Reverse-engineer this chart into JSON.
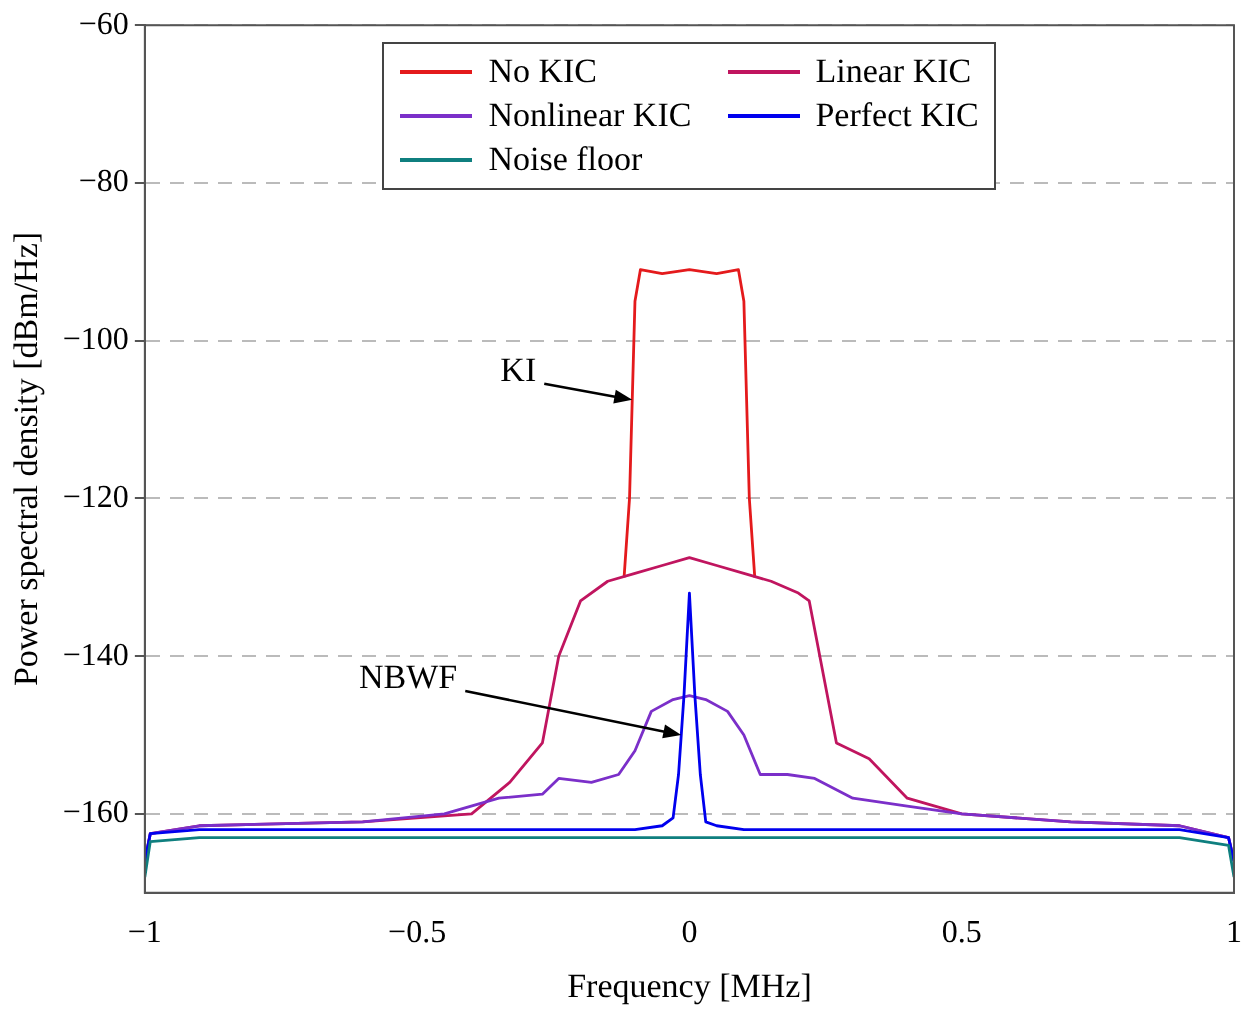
{
  "chart_data": {
    "type": "line",
    "xlabel": "Frequency [MHz]",
    "ylabel": "Power spectral density [dBm/Hz]",
    "xlim": [
      -1,
      1
    ],
    "xticks": [
      -1,
      -0.5,
      0,
      0.5,
      1
    ],
    "ylim": [
      -170,
      -60
    ],
    "yticks": [
      -160,
      -140,
      -120,
      -100,
      -80,
      -60
    ],
    "grid": "y",
    "legend": "top",
    "marker": "none",
    "line_style": "solid",
    "annotations": [
      {
        "text": "KI",
        "x": -0.105,
        "y": -107.5
      },
      {
        "text": "NBWF",
        "x": -0.015,
        "y": -150
      }
    ],
    "series": [
      {
        "name": "No KIC",
        "color": "#e41a1c",
        "x": [
          -0.12,
          -0.11,
          -0.1,
          -0.09,
          -0.05,
          0,
          0.05,
          0.09,
          0.1,
          0.11,
          0.12
        ],
        "values": [
          -130,
          -120,
          -95,
          -91,
          -91.5,
          -91,
          -91.5,
          -91,
          -95,
          -120,
          -130
        ]
      },
      {
        "name": "Linear KIC",
        "color": "#c0155f",
        "x": [
          -1,
          -0.99,
          -0.9,
          -0.6,
          -0.4,
          -0.33,
          -0.27,
          -0.24,
          -0.2,
          -0.15,
          -0.1,
          -0.05,
          0,
          0.05,
          0.1,
          0.15,
          0.2,
          0.22,
          0.27,
          0.33,
          0.4,
          0.5,
          0.7,
          0.9,
          0.99,
          1
        ],
        "values": [
          -166,
          -162.5,
          -161.5,
          -161,
          -160,
          -156,
          -151,
          -140,
          -133,
          -130.5,
          -129.5,
          -128.5,
          -127.5,
          -128.5,
          -129.5,
          -130.5,
          -132,
          -133,
          -151,
          -153,
          -158,
          -160,
          -161,
          -161.5,
          -163,
          -166
        ]
      },
      {
        "name": "Nonlinear KIC",
        "color": "#7b2fc9",
        "x": [
          -1,
          -0.99,
          -0.9,
          -0.6,
          -0.45,
          -0.35,
          -0.27,
          -0.24,
          -0.18,
          -0.13,
          -0.1,
          -0.07,
          -0.03,
          0,
          0.03,
          0.07,
          0.1,
          0.13,
          0.18,
          0.23,
          0.3,
          0.4,
          0.5,
          0.7,
          0.9,
          0.99,
          1
        ],
        "values": [
          -166,
          -162.5,
          -161.5,
          -161,
          -160,
          -158,
          -157.5,
          -155.5,
          -156,
          -155,
          -152,
          -147,
          -145.5,
          -145,
          -145.5,
          -147,
          -150,
          -155,
          -155,
          -155.5,
          -158,
          -159,
          -160,
          -161,
          -161.5,
          -163,
          -166
        ]
      },
      {
        "name": "Perfect KIC",
        "color": "#0000ee",
        "x": [
          -1,
          -0.99,
          -0.9,
          -0.5,
          -0.1,
          -0.05,
          -0.03,
          -0.02,
          -0.015,
          -0.01,
          0,
          0.01,
          0.02,
          0.03,
          0.05,
          0.1,
          0.5,
          0.9,
          0.99,
          1
        ],
        "values": [
          -166,
          -162.5,
          -162,
          -162,
          -162,
          -161.5,
          -160.5,
          -155,
          -150,
          -145,
          -132,
          -145,
          -155,
          -161,
          -161.5,
          -162,
          -162,
          -162,
          -163,
          -166
        ]
      },
      {
        "name": "Noise floor",
        "color": "#0f7f7f",
        "x": [
          -1,
          -0.99,
          -0.9,
          -0.5,
          0,
          0.5,
          0.9,
          0.99,
          1
        ],
        "values": [
          -168,
          -163.5,
          -163,
          -163,
          -163,
          -163,
          -163,
          -164,
          -168
        ]
      }
    ]
  }
}
